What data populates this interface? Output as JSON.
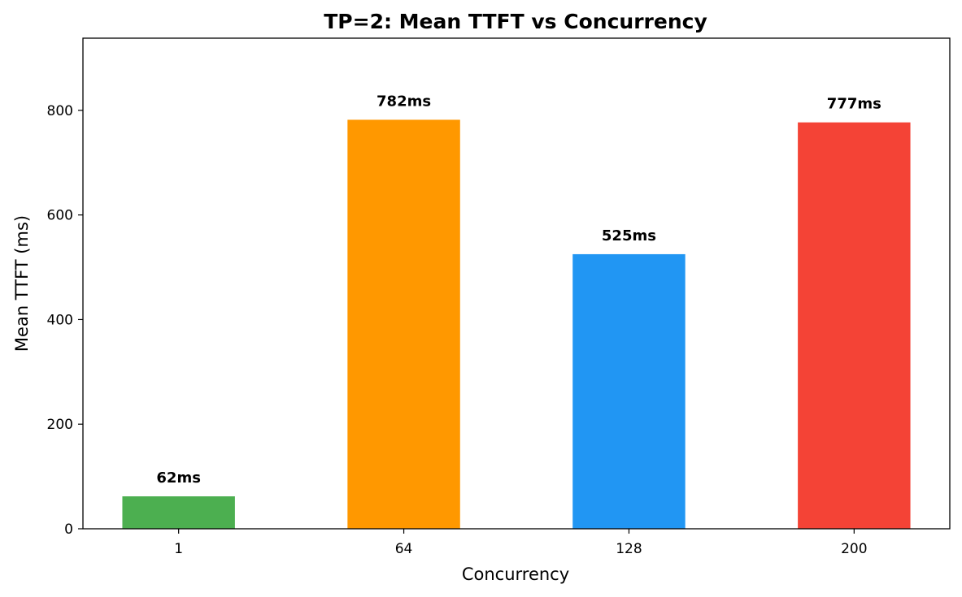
{
  "chart_data": {
    "type": "bar",
    "title": "TP=2: Mean TTFT vs Concurrency",
    "xlabel": "Concurrency",
    "ylabel": "Mean TTFT (ms)",
    "categories": [
      "1",
      "64",
      "128",
      "200"
    ],
    "values": [
      62,
      782,
      525,
      777
    ],
    "data_labels": [
      "62ms",
      "782ms",
      "525ms",
      "777ms"
    ],
    "colors": [
      "#4caf50",
      "#ff9800",
      "#2196f3",
      "#f44336"
    ],
    "ylim": [
      0,
      938
    ],
    "yticks": [
      0,
      200,
      400,
      600,
      800
    ],
    "grid": false,
    "legend": "none"
  }
}
